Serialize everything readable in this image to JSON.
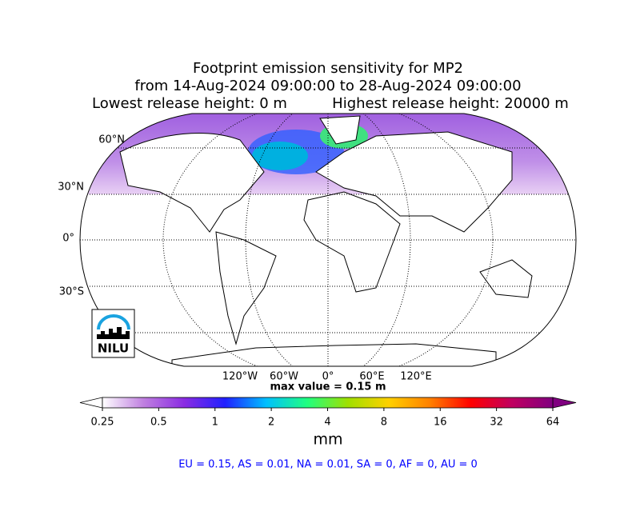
{
  "header": {
    "title_lines": [
      "Footprint emission sensitivity for MP2",
      "from 14-Aug-2024 09:00:00 to 28-Aug-2024 09:00:00",
      "Lowest release height: 0 m",
      "Highest release height: 20000 m"
    ]
  },
  "map": {
    "lat_labels": [
      "60°N",
      "30°N",
      "0°",
      "30°S"
    ],
    "lon_labels": [
      "120°W",
      "60°W",
      "0°",
      "60°E",
      "120°E"
    ],
    "max_value_text": "max value = 0.15 m",
    "logo_text": "NILU"
  },
  "colorbar": {
    "scale": "log",
    "ticks": [
      0.25,
      0.5,
      1,
      2,
      4,
      8,
      16,
      32,
      64
    ],
    "label": "mm",
    "colors": [
      "#ffffff",
      "#c080e0",
      "#8a2be2",
      "#2020ff",
      "#00c0ff",
      "#20ff80",
      "#a0e000",
      "#ffd000",
      "#ff8000",
      "#ff0000",
      "#c00060",
      "#800080"
    ]
  },
  "footer": {
    "text": "EU = 0.15,  AS = 0.01,  NA = 0.01,  SA = 0,  AF = 0,  AU = 0"
  }
}
